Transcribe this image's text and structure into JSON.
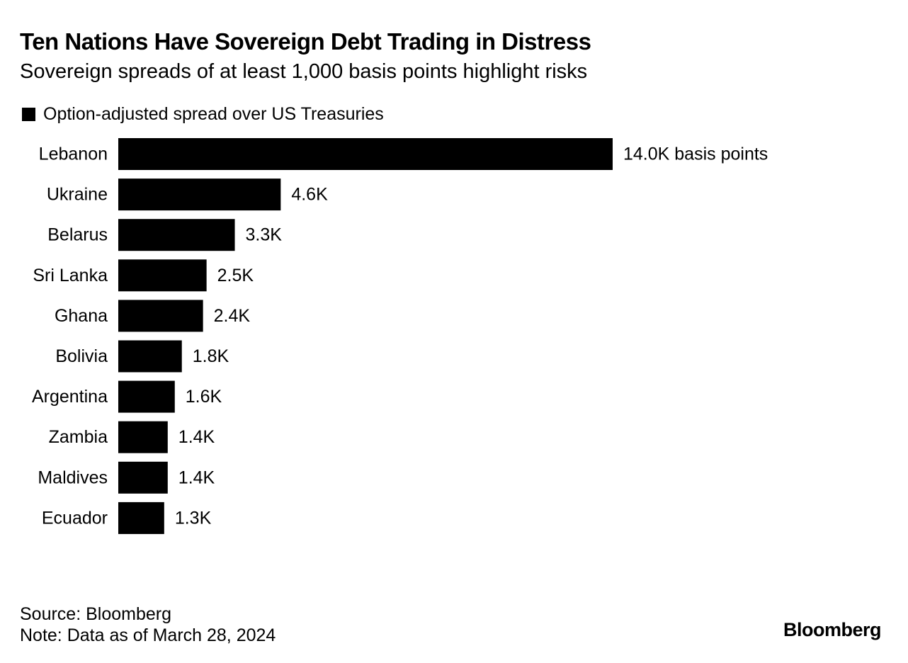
{
  "title": "Ten Nations Have Sovereign Debt Trading in Distress",
  "subtitle": "Sovereign spreads of at least 1,000 basis points highlight risks",
  "colors": {
    "bar": "#000000",
    "text": "#000000",
    "background": "#ffffff"
  },
  "chart_data": {
    "type": "bar",
    "orientation": "horizontal",
    "legend": [
      {
        "label": "Option-adjusted spread over US Treasuries",
        "color": "#000000"
      }
    ],
    "categories": [
      "Lebanon",
      "Ukraine",
      "Belarus",
      "Sri Lanka",
      "Ghana",
      "Bolivia",
      "Argentina",
      "Zambia",
      "Maldives",
      "Ecuador"
    ],
    "values": [
      14000,
      4600,
      3300,
      2500,
      2400,
      1800,
      1600,
      1400,
      1400,
      1300
    ],
    "value_labels": [
      "14.0K basis points",
      "4.6K",
      "3.3K",
      "2.5K",
      "2.4K",
      "1.8K",
      "1.6K",
      "1.4K",
      "1.4K",
      "1.3K"
    ],
    "unit": "basis points",
    "xlim": [
      0,
      14000
    ],
    "grid": false
  },
  "footer": {
    "source": "Source: Bloomberg",
    "note": "Note: Data as of March 28, 2024"
  },
  "brand": "Bloomberg"
}
